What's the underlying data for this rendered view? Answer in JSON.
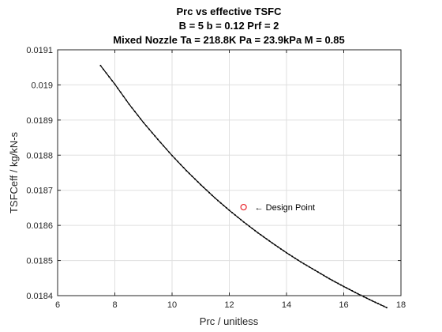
{
  "chart_data": {
    "type": "line",
    "title": [
      "Prc vs effective TSFC",
      "B = 5 b = 0.12 Prf = 2",
      "Mixed Nozzle Ta = 218.8K Pa = 23.9kPa M = 0.85"
    ],
    "xlabel": "Prc / unitless",
    "ylabel": "TSFCeff / kg/kN-s",
    "xlim": [
      6,
      18
    ],
    "ylim": [
      0.0184,
      0.0191
    ],
    "xticks": [
      "6",
      "8",
      "10",
      "12",
      "14",
      "16",
      "18"
    ],
    "yticks": [
      "0.0184",
      "0.0185",
      "0.0186",
      "0.0187",
      "0.0188",
      "0.0189",
      "0.019",
      "0.0191"
    ],
    "grid": true,
    "series": [
      {
        "color": "#000000",
        "marker": "dot",
        "x": [
          7.5,
          8,
          8.5,
          9,
          9.5,
          10,
          10.5,
          11,
          11.5,
          12,
          12.5,
          13,
          13.5,
          14,
          14.5,
          15,
          15.5,
          16,
          16.5,
          17,
          17.5
        ],
        "y": [
          0.019055,
          0.019002,
          0.018945,
          0.018893,
          0.018845,
          0.018799,
          0.018756,
          0.018716,
          0.018678,
          0.018643,
          0.01861,
          0.018579,
          0.01855,
          0.018522,
          0.018496,
          0.018472,
          0.018448,
          0.018426,
          0.018405,
          0.018385,
          0.018366
        ]
      }
    ],
    "annotations": [
      {
        "text": "← Design Point",
        "x": 12.5,
        "y": 0.018652,
        "marker": "circle",
        "color": "#e8242b"
      }
    ]
  }
}
